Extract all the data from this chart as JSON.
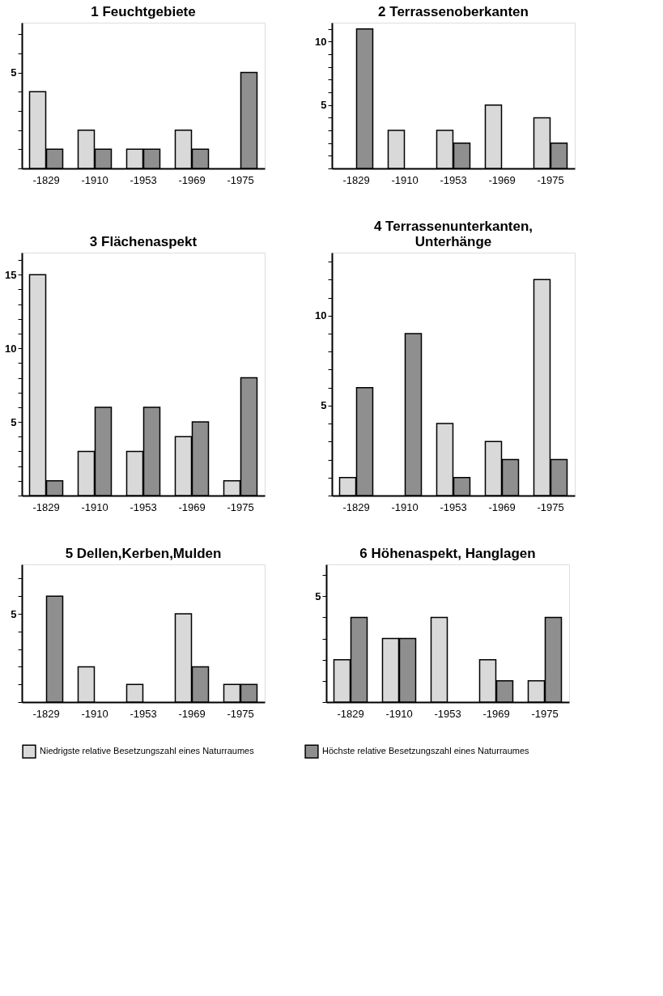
{
  "chart_data": [
    {
      "type": "bar",
      "title": "1  Feuchtgebiete",
      "categories": [
        "-1829",
        "-1910",
        "-1953",
        "-1969",
        "-1975"
      ],
      "series": [
        {
          "name": "Niedrigste relative Besetzungszahl eines Naturraumes",
          "color": "#d9d9d9",
          "values": [
            4,
            2,
            1,
            2,
            null
          ]
        },
        {
          "name": "Höchste relative Besetzungszahl eines Naturraumes",
          "color": "#8f8f8f",
          "values": [
            1,
            1,
            1,
            1,
            5
          ]
        }
      ],
      "ylim": [
        0,
        7.6
      ],
      "yticks": [
        {
          "value": 0,
          "label": null
        },
        {
          "value": 1,
          "label": null
        },
        {
          "value": 2,
          "label": null
        },
        {
          "value": 3,
          "label": null
        },
        {
          "value": 4,
          "label": null
        },
        5,
        {
          "value": 6,
          "label": null
        },
        {
          "value": 7,
          "label": null
        }
      ],
      "legend": "bottom"
    },
    {
      "type": "bar",
      "title": "2 Terrassenoberkanten",
      "categories": [
        "-1829",
        "-1910",
        "-1953",
        "-1969",
        "-1975"
      ],
      "series": [
        {
          "name": "Niedrigste relative Besetzungszahl eines Naturraumes",
          "color": "#d9d9d9",
          "values": [
            null,
            3,
            3,
            5,
            4
          ]
        },
        {
          "name": "Höchste relative Besetzungszahl eines Naturraumes",
          "color": "#8f8f8f",
          "values": [
            11,
            null,
            2,
            null,
            2
          ]
        }
      ],
      "ylim": [
        0,
        11.5
      ],
      "yticks": [
        {
          "value": 0,
          "label": null
        },
        {
          "value": 1,
          "label": null
        },
        {
          "value": 2,
          "label": null
        },
        {
          "value": 3,
          "label": null
        },
        {
          "value": 4,
          "label": null
        },
        5,
        {
          "value": 6,
          "label": null
        },
        {
          "value": 7,
          "label": null
        },
        {
          "value": 8,
          "label": null
        },
        {
          "value": 9,
          "label": null
        },
        10,
        {
          "value": 11,
          "label": null
        }
      ],
      "legend": "bottom"
    },
    {
      "type": "bar",
      "title": "3  Flächenaspekt",
      "categories": [
        "-1829",
        "-1910",
        "-1953",
        "-1969",
        "-1975"
      ],
      "series": [
        {
          "name": "Niedrigste relative Besetzungszahl eines Naturraumes",
          "color": "#d9d9d9",
          "values": [
            15,
            3,
            3,
            4,
            1
          ]
        },
        {
          "name": "Höchste relative Besetzungszahl eines Naturraumes",
          "color": "#8f8f8f",
          "values": [
            1,
            6,
            6,
            5,
            8
          ]
        }
      ],
      "ylim": [
        0,
        16.5
      ],
      "yticks": [
        {
          "value": 0,
          "label": null
        },
        {
          "value": 1,
          "label": null
        },
        {
          "value": 2,
          "label": null
        },
        {
          "value": 3,
          "label": null
        },
        {
          "value": 4,
          "label": null
        },
        5,
        {
          "value": 6,
          "label": null
        },
        {
          "value": 7,
          "label": null
        },
        {
          "value": 8,
          "label": null
        },
        {
          "value": 9,
          "label": null
        },
        10,
        {
          "value": 11,
          "label": null
        },
        {
          "value": 12,
          "label": null
        },
        {
          "value": 13,
          "label": null
        },
        {
          "value": 14,
          "label": null
        },
        15,
        {
          "value": 16,
          "label": null
        }
      ],
      "legend": "bottom"
    },
    {
      "type": "bar",
      "title": "4  Terrassenunterkanten,\nUnterhänge",
      "categories": [
        "-1829",
        "-1910",
        "-1953",
        "-1969",
        "-1975"
      ],
      "series": [
        {
          "name": "Niedrigste relative Besetzungszahl eines Naturraumes",
          "color": "#d9d9d9",
          "values": [
            1,
            null,
            4,
            3,
            12
          ]
        },
        {
          "name": "Höchste relative Besetzungszahl eines Naturraumes",
          "color": "#8f8f8f",
          "values": [
            6,
            9,
            1,
            2,
            2
          ]
        }
      ],
      "ylim": [
        0,
        13.5
      ],
      "yticks": [
        {
          "value": 0,
          "label": null
        },
        {
          "value": 1,
          "label": null
        },
        {
          "value": 2,
          "label": null
        },
        {
          "value": 3,
          "label": null
        },
        {
          "value": 4,
          "label": null
        },
        5,
        {
          "value": 6,
          "label": null
        },
        {
          "value": 7,
          "label": null
        },
        {
          "value": 8,
          "label": null
        },
        {
          "value": 9,
          "label": null
        },
        10,
        {
          "value": 11,
          "label": null
        },
        {
          "value": 12,
          "label": null
        },
        {
          "value": 13,
          "label": null
        }
      ],
      "legend": "bottom"
    },
    {
      "type": "bar",
      "title": "5  Dellen,Kerben,Mulden",
      "categories": [
        "-1829",
        "-1910",
        "-1953",
        "-1969",
        "-1975"
      ],
      "series": [
        {
          "name": "Niedrigste relative Besetzungszahl eines Naturraumes",
          "color": "#d9d9d9",
          "values": [
            null,
            2,
            1,
            5,
            1
          ]
        },
        {
          "name": "Höchste relative Besetzungszahl eines Naturraumes",
          "color": "#8f8f8f",
          "values": [
            6,
            null,
            null,
            2,
            1
          ]
        }
      ],
      "ylim": [
        0,
        7.8
      ],
      "yticks": [
        {
          "value": 0,
          "label": null
        },
        {
          "value": 1,
          "label": null
        },
        {
          "value": 2,
          "label": null
        },
        {
          "value": 3,
          "label": null
        },
        {
          "value": 4,
          "label": null
        },
        5,
        {
          "value": 6,
          "label": null
        },
        {
          "value": 7,
          "label": null
        }
      ],
      "legend": "bottom"
    },
    {
      "type": "bar",
      "title": "6 Höhenaspekt, Hanglagen",
      "categories": [
        "-1829",
        "-1910",
        "-1953",
        "-1969",
        "-1975"
      ],
      "series": [
        {
          "name": "Niedrigste relative Besetzungszahl eines Naturraumes",
          "color": "#d9d9d9",
          "values": [
            2,
            3,
            4,
            2,
            1
          ]
        },
        {
          "name": "Höchste relative Besetzungszahl eines Naturraumes",
          "color": "#8f8f8f",
          "values": [
            4,
            3,
            null,
            1,
            4
          ]
        }
      ],
      "ylim": [
        0,
        6.5
      ],
      "yticks": [
        {
          "value": 0,
          "label": null
        },
        {
          "value": 1,
          "label": null
        },
        {
          "value": 2,
          "label": null
        },
        {
          "value": 3,
          "label": null
        },
        {
          "value": 4,
          "label": null
        },
        5,
        {
          "value": 6,
          "label": null
        }
      ],
      "legend": "bottom"
    }
  ]
}
